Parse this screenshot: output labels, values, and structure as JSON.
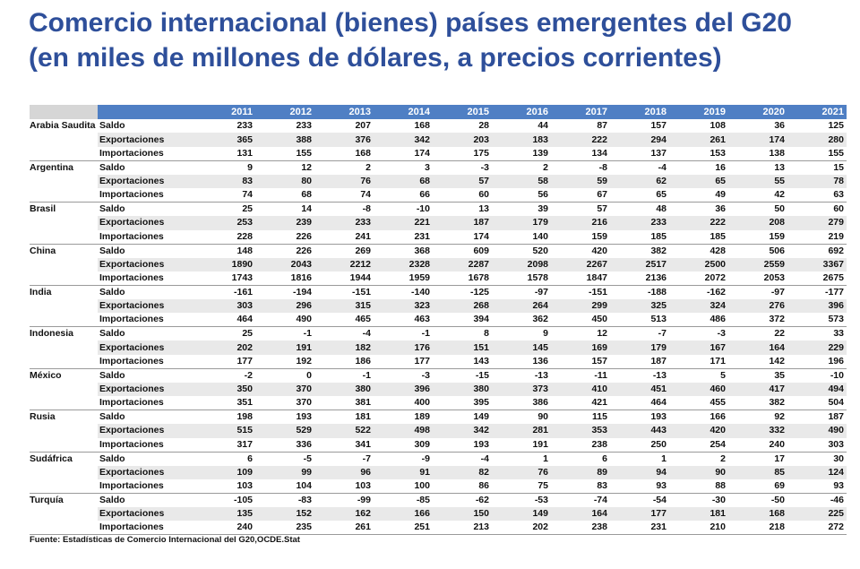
{
  "title": {
    "line1": "Comercio internacional (bienes) países emergentes del G20",
    "line2": "(en miles de millones de dólares, a precios corrientes)"
  },
  "years": [
    "2011",
    "2012",
    "2013",
    "2014",
    "2015",
    "2016",
    "2017",
    "2018",
    "2019",
    "2020",
    "2021"
  ],
  "countries": [
    {
      "name": "Arabia Saudita",
      "rows": [
        {
          "label": "Saldo",
          "values": [
            "233",
            "233",
            "207",
            "168",
            "28",
            "44",
            "87",
            "157",
            "108",
            "36",
            "125"
          ]
        },
        {
          "label": "Exportaciones",
          "values": [
            "365",
            "388",
            "376",
            "342",
            "203",
            "183",
            "222",
            "294",
            "261",
            "174",
            "280"
          ]
        },
        {
          "label": "Importaciones",
          "values": [
            "131",
            "155",
            "168",
            "174",
            "175",
            "139",
            "134",
            "137",
            "153",
            "138",
            "155"
          ]
        }
      ]
    },
    {
      "name": "Argentina",
      "rows": [
        {
          "label": "Saldo",
          "values": [
            "9",
            "12",
            "2",
            "3",
            "-3",
            "2",
            "-8",
            "-4",
            "16",
            "13",
            "15"
          ]
        },
        {
          "label": "Exportaciones",
          "values": [
            "83",
            "80",
            "76",
            "68",
            "57",
            "58",
            "59",
            "62",
            "65",
            "55",
            "78"
          ]
        },
        {
          "label": "Importaciones",
          "values": [
            "74",
            "68",
            "74",
            "66",
            "60",
            "56",
            "67",
            "65",
            "49",
            "42",
            "63"
          ]
        }
      ]
    },
    {
      "name": "Brasil",
      "rows": [
        {
          "label": "Saldo",
          "values": [
            "25",
            "14",
            "-8",
            "-10",
            "13",
            "39",
            "57",
            "48",
            "36",
            "50",
            "60"
          ]
        },
        {
          "label": "Exportaciones",
          "values": [
            "253",
            "239",
            "233",
            "221",
            "187",
            "179",
            "216",
            "233",
            "222",
            "208",
            "279"
          ]
        },
        {
          "label": "Importaciones",
          "values": [
            "228",
            "226",
            "241",
            "231",
            "174",
            "140",
            "159",
            "185",
            "185",
            "159",
            "219"
          ]
        }
      ]
    },
    {
      "name": "China",
      "rows": [
        {
          "label": "Saldo",
          "values": [
            "148",
            "226",
            "269",
            "368",
            "609",
            "520",
            "420",
            "382",
            "428",
            "506",
            "692"
          ]
        },
        {
          "label": "Exportaciones",
          "values": [
            "1890",
            "2043",
            "2212",
            "2328",
            "2287",
            "2098",
            "2267",
            "2517",
            "2500",
            "2559",
            "3367"
          ]
        },
        {
          "label": "Importaciones",
          "values": [
            "1743",
            "1816",
            "1944",
            "1959",
            "1678",
            "1578",
            "1847",
            "2136",
            "2072",
            "2053",
            "2675"
          ]
        }
      ]
    },
    {
      "name": "India",
      "rows": [
        {
          "label": "Saldo",
          "values": [
            "-161",
            "-194",
            "-151",
            "-140",
            "-125",
            "-97",
            "-151",
            "-188",
            "-162",
            "-97",
            "-177"
          ]
        },
        {
          "label": "Exportaciones",
          "values": [
            "303",
            "296",
            "315",
            "323",
            "268",
            "264",
            "299",
            "325",
            "324",
            "276",
            "396"
          ]
        },
        {
          "label": "Importaciones",
          "values": [
            "464",
            "490",
            "465",
            "463",
            "394",
            "362",
            "450",
            "513",
            "486",
            "372",
            "573"
          ]
        }
      ]
    },
    {
      "name": "Indonesia",
      "rows": [
        {
          "label": "Saldo",
          "values": [
            "25",
            "-1",
            "-4",
            "-1",
            "8",
            "9",
            "12",
            "-7",
            "-3",
            "22",
            "33"
          ]
        },
        {
          "label": "Exportaciones",
          "values": [
            "202",
            "191",
            "182",
            "176",
            "151",
            "145",
            "169",
            "179",
            "167",
            "164",
            "229"
          ]
        },
        {
          "label": "Importaciones",
          "values": [
            "177",
            "192",
            "186",
            "177",
            "143",
            "136",
            "157",
            "187",
            "171",
            "142",
            "196"
          ]
        }
      ]
    },
    {
      "name": "México",
      "rows": [
        {
          "label": "Saldo",
          "values": [
            "-2",
            "0",
            "-1",
            "-3",
            "-15",
            "-13",
            "-11",
            "-13",
            "5",
            "35",
            "-10"
          ]
        },
        {
          "label": "Exportaciones",
          "values": [
            "350",
            "370",
            "380",
            "396",
            "380",
            "373",
            "410",
            "451",
            "460",
            "417",
            "494"
          ]
        },
        {
          "label": "Importaciones",
          "values": [
            "351",
            "370",
            "381",
            "400",
            "395",
            "386",
            "421",
            "464",
            "455",
            "382",
            "504"
          ]
        }
      ]
    },
    {
      "name": "Rusia",
      "rows": [
        {
          "label": "Saldo",
          "values": [
            "198",
            "193",
            "181",
            "189",
            "149",
            "90",
            "115",
            "193",
            "166",
            "92",
            "187"
          ]
        },
        {
          "label": "Exportaciones",
          "values": [
            "515",
            "529",
            "522",
            "498",
            "342",
            "281",
            "353",
            "443",
            "420",
            "332",
            "490"
          ]
        },
        {
          "label": "Importaciones",
          "values": [
            "317",
            "336",
            "341",
            "309",
            "193",
            "191",
            "238",
            "250",
            "254",
            "240",
            "303"
          ]
        }
      ]
    },
    {
      "name": "Sudáfrica",
      "rows": [
        {
          "label": "Saldo",
          "values": [
            "6",
            "-5",
            "-7",
            "-9",
            "-4",
            "1",
            "6",
            "1",
            "2",
            "17",
            "30"
          ]
        },
        {
          "label": "Exportaciones",
          "values": [
            "109",
            "99",
            "96",
            "91",
            "82",
            "76",
            "89",
            "94",
            "90",
            "85",
            "124"
          ]
        },
        {
          "label": "Importaciones",
          "values": [
            "103",
            "104",
            "103",
            "100",
            "86",
            "75",
            "83",
            "93",
            "88",
            "69",
            "93"
          ]
        }
      ]
    },
    {
      "name": "Turquía",
      "rows": [
        {
          "label": "Saldo",
          "values": [
            "-105",
            "-83",
            "-99",
            "-85",
            "-62",
            "-53",
            "-74",
            "-54",
            "-30",
            "-50",
            "-46"
          ]
        },
        {
          "label": "Exportaciones",
          "values": [
            "135",
            "152",
            "162",
            "166",
            "150",
            "149",
            "164",
            "177",
            "181",
            "168",
            "225"
          ]
        },
        {
          "label": "Importaciones",
          "values": [
            "240",
            "235",
            "261",
            "251",
            "213",
            "202",
            "238",
            "231",
            "210",
            "218",
            "272"
          ]
        }
      ]
    }
  ],
  "source": "Fuente: Estadísticas de Comercio Internacional del G20,OCDE.Stat"
}
